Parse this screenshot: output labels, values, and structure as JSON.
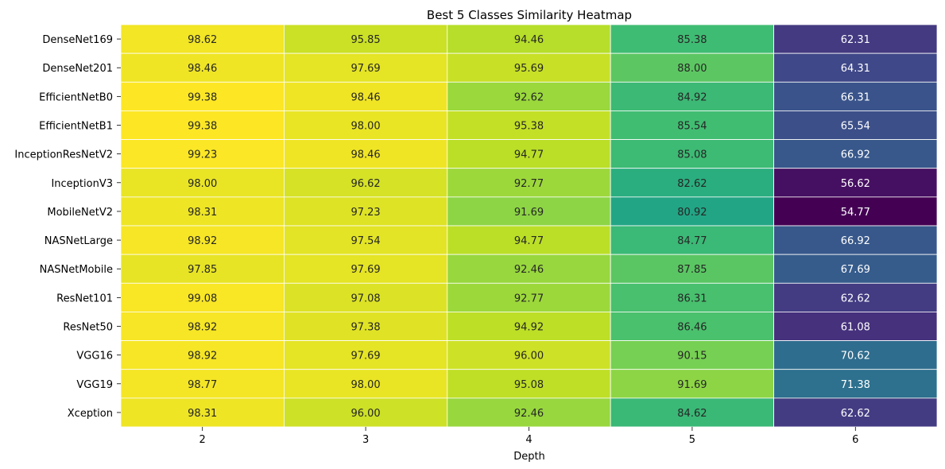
{
  "chart_data": {
    "type": "heatmap",
    "title": "Best 5 Classes Similarity Heatmap",
    "xlabel": "Depth",
    "ylabel": "",
    "x_categories": [
      "2",
      "3",
      "4",
      "5",
      "6"
    ],
    "y_categories": [
      "DenseNet169",
      "DenseNet201",
      "EfficientNetB0",
      "EfficientNetB1",
      "InceptionResNetV2",
      "InceptionV3",
      "MobileNetV2",
      "NASNetLarge",
      "NASNetMobile",
      "ResNet101",
      "ResNet50",
      "VGG16",
      "VGG19",
      "Xception"
    ],
    "values": [
      [
        98.62,
        95.85,
        94.46,
        85.38,
        62.31
      ],
      [
        98.46,
        97.69,
        95.69,
        88.0,
        64.31
      ],
      [
        99.38,
        98.46,
        92.62,
        84.92,
        66.31
      ],
      [
        99.38,
        98.0,
        95.38,
        85.54,
        65.54
      ],
      [
        99.23,
        98.46,
        94.77,
        85.08,
        66.92
      ],
      [
        98.0,
        96.62,
        92.77,
        82.62,
        56.62
      ],
      [
        98.31,
        97.23,
        91.69,
        80.92,
        54.77
      ],
      [
        98.92,
        97.54,
        94.77,
        84.77,
        66.92
      ],
      [
        97.85,
        97.69,
        92.46,
        87.85,
        67.69
      ],
      [
        99.08,
        97.08,
        92.77,
        86.31,
        62.62
      ],
      [
        98.92,
        97.38,
        94.92,
        86.46,
        61.08
      ],
      [
        98.92,
        97.69,
        96.0,
        90.15,
        70.62
      ],
      [
        98.77,
        98.0,
        95.08,
        91.69,
        71.38
      ],
      [
        98.31,
        96.0,
        92.46,
        84.62,
        62.62
      ]
    ],
    "value_format": "2 decimals",
    "colormap": "viridis",
    "vmin": 54.77,
    "vmax": 99.38,
    "colorbar": false,
    "cell_borders": "white"
  }
}
